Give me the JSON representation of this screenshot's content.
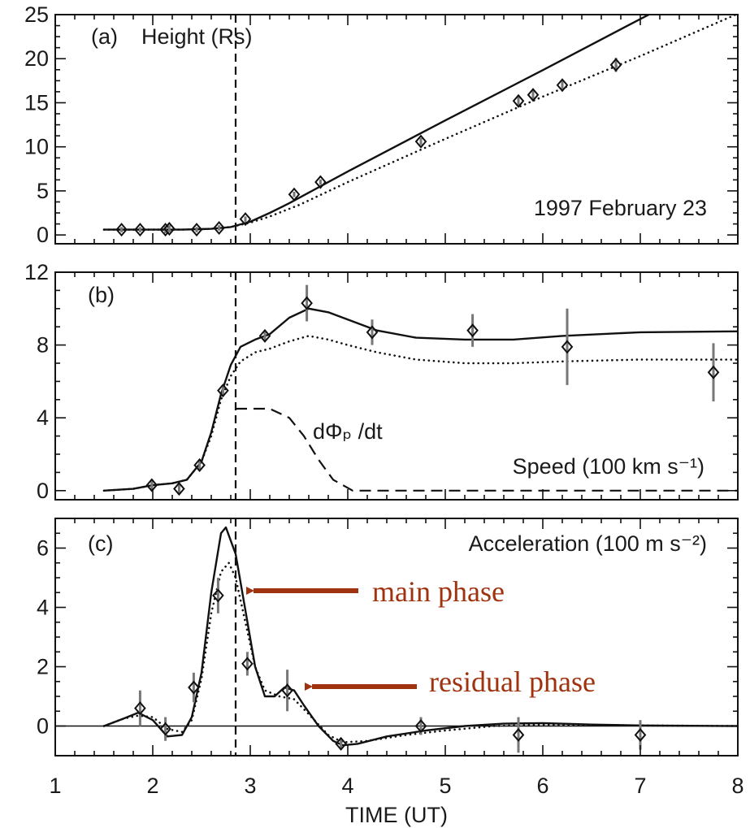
{
  "chart_data": [
    {
      "id": "a",
      "type": "line",
      "panel_label": "(a)",
      "title": "Height (Rs)",
      "annotation": "1997 February 23",
      "xlim": [
        1,
        8
      ],
      "ylim": [
        -1,
        25
      ],
      "yticks": [
        0,
        5,
        10,
        15,
        20,
        25
      ],
      "event_line_x": 2.85,
      "series": [
        {
          "style": "solid",
          "points": [
            [
              1.5,
              0.6
            ],
            [
              1.9,
              0.6
            ],
            [
              2.3,
              0.6
            ],
            [
              2.6,
              0.7
            ],
            [
              2.8,
              0.9
            ],
            [
              3.0,
              1.5
            ],
            [
              3.2,
              2.5
            ],
            [
              3.4,
              3.6
            ],
            [
              3.6,
              4.8
            ],
            [
              3.8,
              6.0
            ],
            [
              4.0,
              7.2
            ],
            [
              5.0,
              13.0
            ],
            [
              6.0,
              18.7
            ],
            [
              7.0,
              24.5
            ],
            [
              8.0,
              30.2
            ]
          ]
        },
        {
          "style": "dotted",
          "points": [
            [
              1.5,
              0.6
            ],
            [
              1.9,
              0.6
            ],
            [
              2.3,
              0.6
            ],
            [
              2.6,
              0.7
            ],
            [
              2.8,
              0.9
            ],
            [
              3.0,
              1.4
            ],
            [
              3.2,
              2.1
            ],
            [
              3.5,
              3.4
            ],
            [
              4.0,
              6.0
            ],
            [
              5.0,
              10.9
            ],
            [
              6.0,
              15.7
            ],
            [
              7.0,
              20.3
            ],
            [
              8.0,
              25.1
            ]
          ]
        },
        {
          "style": "markers",
          "points": [
            [
              1.68,
              0.6,
              0.3
            ],
            [
              1.87,
              0.6,
              0.3
            ],
            [
              2.13,
              0.6,
              0.4
            ],
            [
              2.17,
              0.7,
              0.4
            ],
            [
              2.45,
              0.6,
              0.3
            ],
            [
              2.68,
              0.8,
              0.3
            ],
            [
              2.95,
              1.8,
              0.3
            ],
            [
              3.45,
              4.6,
              0.3
            ],
            [
              3.72,
              6.0,
              0.3
            ],
            [
              4.75,
              10.6,
              0.4
            ],
            [
              5.75,
              15.2,
              0.5
            ],
            [
              5.9,
              15.9,
              0.6
            ],
            [
              6.2,
              17.0,
              0.6
            ],
            [
              6.75,
              19.3,
              0.8
            ]
          ]
        }
      ]
    },
    {
      "id": "b",
      "type": "line",
      "panel_label": "(b)",
      "title": "Speed (100 km s⁻¹)",
      "flux_label": "dΦₚ /dt",
      "xlim": [
        1,
        8
      ],
      "ylim": [
        -0.5,
        12
      ],
      "yticks": [
        0,
        4,
        8,
        12
      ],
      "event_line_x": 2.85,
      "series": [
        {
          "style": "solid",
          "points": [
            [
              1.5,
              0
            ],
            [
              1.8,
              0.1
            ],
            [
              2.0,
              0.3
            ],
            [
              2.2,
              0.4
            ],
            [
              2.35,
              0.6
            ],
            [
              2.5,
              1.6
            ],
            [
              2.6,
              3.2
            ],
            [
              2.7,
              5.3
            ],
            [
              2.8,
              6.9
            ],
            [
              2.9,
              7.9
            ],
            [
              3.05,
              8.3
            ],
            [
              3.2,
              8.6
            ],
            [
              3.4,
              9.5
            ],
            [
              3.6,
              10.0
            ],
            [
              3.8,
              9.8
            ],
            [
              4.0,
              9.4
            ],
            [
              4.3,
              8.8
            ],
            [
              4.7,
              8.4
            ],
            [
              5.2,
              8.3
            ],
            [
              5.7,
              8.3
            ],
            [
              6.2,
              8.5
            ],
            [
              7.0,
              8.7
            ],
            [
              8.0,
              8.75
            ]
          ]
        },
        {
          "style": "dotted",
          "points": [
            [
              1.5,
              0
            ],
            [
              1.8,
              0.1
            ],
            [
              2.0,
              0.3
            ],
            [
              2.2,
              0.4
            ],
            [
              2.35,
              0.6
            ],
            [
              2.5,
              1.6
            ],
            [
              2.6,
              3.0
            ],
            [
              2.7,
              5.0
            ],
            [
              2.8,
              6.3
            ],
            [
              2.9,
              7.1
            ],
            [
              3.05,
              7.6
            ],
            [
              3.2,
              7.8
            ],
            [
              3.4,
              8.2
            ],
            [
              3.6,
              8.5
            ],
            [
              3.8,
              8.3
            ],
            [
              4.0,
              8.0
            ],
            [
              4.3,
              7.6
            ],
            [
              4.7,
              7.2
            ],
            [
              5.2,
              7.0
            ],
            [
              5.7,
              7.0
            ],
            [
              6.2,
              7.1
            ],
            [
              7.0,
              7.2
            ],
            [
              8.0,
              7.2
            ]
          ]
        },
        {
          "style": "dashed",
          "points": [
            [
              2.85,
              4.5
            ],
            [
              3.2,
              4.5
            ],
            [
              3.4,
              4.0
            ],
            [
              3.55,
              3.0
            ],
            [
              3.7,
              1.7
            ],
            [
              3.85,
              0.6
            ],
            [
              4.05,
              0
            ],
            [
              8.0,
              0
            ]
          ]
        },
        {
          "style": "markers",
          "points": [
            [
              1.99,
              0.3,
              0.3
            ],
            [
              2.27,
              0.1,
              0.3
            ],
            [
              2.48,
              1.4,
              0.3
            ],
            [
              2.72,
              5.5,
              0.3
            ],
            [
              3.15,
              8.5,
              0.3
            ],
            [
              3.58,
              10.3,
              1.0
            ],
            [
              4.25,
              8.7,
              0.7
            ],
            [
              5.28,
              8.8,
              0.9
            ],
            [
              6.25,
              7.9,
              2.1
            ],
            [
              7.75,
              6.5,
              1.6
            ]
          ]
        }
      ]
    },
    {
      "id": "c",
      "type": "line",
      "panel_label": "(c)",
      "title": "Acceleration (100 m s⁻²)",
      "xlabel": "TIME (UT)",
      "xticks": [
        1,
        2,
        3,
        4,
        5,
        6,
        7,
        8
      ],
      "xlim": [
        1,
        8
      ],
      "ylim": [
        -1,
        7
      ],
      "yticks": [
        0,
        2,
        4,
        6
      ],
      "event_line_x": 2.85,
      "series": [
        {
          "style": "solid",
          "points": [
            [
              1.5,
              0
            ],
            [
              1.7,
              0.25
            ],
            [
              1.85,
              0.45
            ],
            [
              2.0,
              0.2
            ],
            [
              2.15,
              -0.35
            ],
            [
              2.3,
              -0.3
            ],
            [
              2.4,
              0.3
            ],
            [
              2.5,
              1.8
            ],
            [
              2.6,
              4.5
            ],
            [
              2.7,
              6.5
            ],
            [
              2.75,
              6.7
            ],
            [
              2.85,
              5.8
            ],
            [
              2.95,
              3.9
            ],
            [
              3.05,
              2.0
            ],
            [
              3.15,
              1.0
            ],
            [
              3.25,
              1.0
            ],
            [
              3.35,
              1.3
            ],
            [
              3.45,
              1.2
            ],
            [
              3.55,
              0.7
            ],
            [
              3.7,
              0
            ],
            [
              3.85,
              -0.5
            ],
            [
              3.95,
              -0.65
            ],
            [
              4.1,
              -0.6
            ],
            [
              4.4,
              -0.35
            ],
            [
              4.8,
              -0.15
            ],
            [
              5.2,
              0
            ],
            [
              5.6,
              0.08
            ],
            [
              6.0,
              0.1
            ],
            [
              6.5,
              0.05
            ],
            [
              7.0,
              0.02
            ],
            [
              8.0,
              0
            ]
          ]
        },
        {
          "style": "dotted",
          "points": [
            [
              1.5,
              0
            ],
            [
              1.7,
              0.25
            ],
            [
              1.85,
              0.35
            ],
            [
              2.0,
              0.3
            ],
            [
              2.15,
              -0.1
            ],
            [
              2.3,
              -0.2
            ],
            [
              2.4,
              0.2
            ],
            [
              2.5,
              1.6
            ],
            [
              2.6,
              3.8
            ],
            [
              2.7,
              5.2
            ],
            [
              2.78,
              5.5
            ],
            [
              2.85,
              5.0
            ],
            [
              2.95,
              3.5
            ],
            [
              3.05,
              2.0
            ],
            [
              3.15,
              1.2
            ],
            [
              3.3,
              1.0
            ],
            [
              3.45,
              0.9
            ],
            [
              3.6,
              0.4
            ],
            [
              3.8,
              -0.3
            ],
            [
              3.95,
              -0.55
            ],
            [
              4.2,
              -0.5
            ],
            [
              4.6,
              -0.3
            ],
            [
              5.0,
              -0.15
            ],
            [
              5.5,
              0
            ],
            [
              6.0,
              0.05
            ],
            [
              7.0,
              0.02
            ],
            [
              8.0,
              0
            ]
          ]
        },
        {
          "style": "markers",
          "points": [
            [
              1.87,
              0.6,
              0.6
            ],
            [
              2.13,
              -0.1,
              0.4
            ],
            [
              2.42,
              1.3,
              0.5
            ],
            [
              2.67,
              4.4,
              0.6
            ],
            [
              2.97,
              2.1,
              0.4
            ],
            [
              3.38,
              1.2,
              0.7
            ],
            [
              3.93,
              -0.6,
              0.2
            ],
            [
              4.75,
              0,
              0.3
            ],
            [
              5.75,
              -0.3,
              0.6
            ],
            [
              7.0,
              -0.3,
              0.5
            ]
          ]
        }
      ]
    }
  ],
  "annotations": {
    "main_phase": "main phase",
    "residual_phase": "residual phase",
    "color": "#a0330f"
  }
}
